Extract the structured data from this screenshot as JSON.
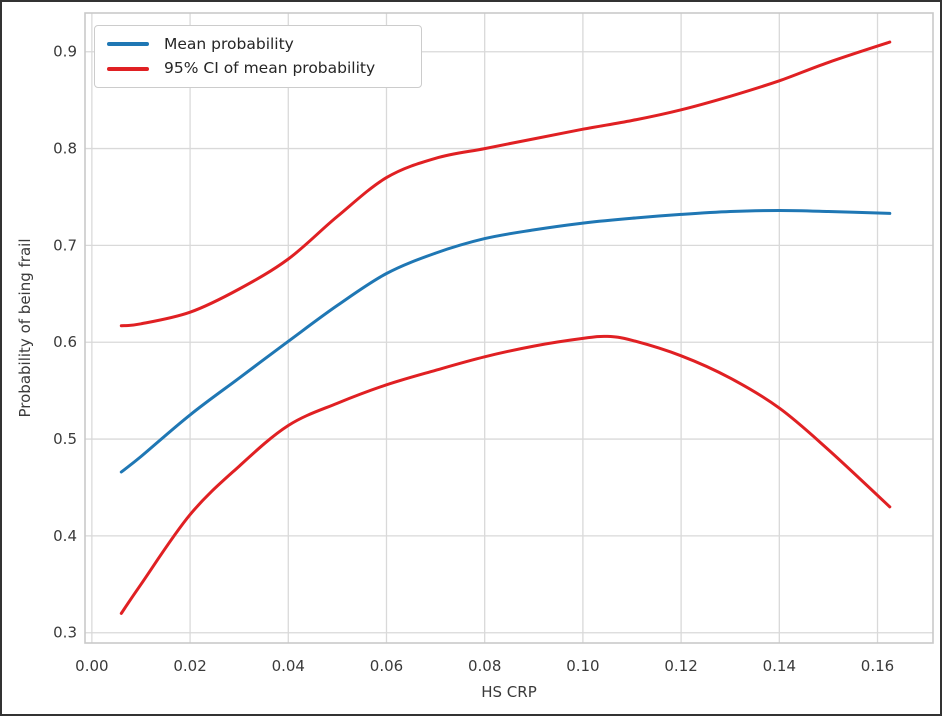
{
  "figure": {
    "background": "#ffffff",
    "frame_border_color": "#333333"
  },
  "legend": {
    "position": "upper-left",
    "items": [
      {
        "label": "Mean probability",
        "color": "#1f77b4"
      },
      {
        "label": "95% CI of mean probability",
        "color": "#e02023"
      }
    ]
  },
  "chart_data": {
    "type": "line",
    "title": "",
    "xlabel": "HS CRP",
    "ylabel": "Probability of being frail",
    "xlim": [
      -0.0014,
      0.1713
    ],
    "ylim": [
      0.2894,
      0.94
    ],
    "grid": true,
    "legend_position": "upper left",
    "colors": {
      "grid": "#d9d9d9",
      "spine": "#c9c9c9",
      "tick_text": "#3a3a3a",
      "label_text": "#3a3a3a"
    },
    "x_ticks": [
      {
        "value": 0.0,
        "label": "0.00"
      },
      {
        "value": 0.02,
        "label": "0.02"
      },
      {
        "value": 0.04,
        "label": "0.04"
      },
      {
        "value": 0.06,
        "label": "0.06"
      },
      {
        "value": 0.08,
        "label": "0.08"
      },
      {
        "value": 0.1,
        "label": "0.10"
      },
      {
        "value": 0.12,
        "label": "0.12"
      },
      {
        "value": 0.14,
        "label": "0.14"
      },
      {
        "value": 0.16,
        "label": "0.16"
      }
    ],
    "y_ticks": [
      {
        "value": 0.3,
        "label": "0.3"
      },
      {
        "value": 0.4,
        "label": "0.4"
      },
      {
        "value": 0.5,
        "label": "0.5"
      },
      {
        "value": 0.6,
        "label": "0.6"
      },
      {
        "value": 0.7,
        "label": "0.7"
      },
      {
        "value": 0.8,
        "label": "0.8"
      },
      {
        "value": 0.9,
        "label": "0.9"
      }
    ],
    "series": [
      {
        "name": "Mean probability",
        "role": "mean",
        "color": "#1f77b4",
        "width": 3,
        "x": [
          0.006,
          0.01,
          0.02,
          0.03,
          0.04,
          0.05,
          0.06,
          0.07,
          0.08,
          0.09,
          0.1,
          0.11,
          0.12,
          0.13,
          0.14,
          0.15,
          0.1625
        ],
        "y": [
          0.466,
          0.482,
          0.525,
          0.563,
          0.601,
          0.638,
          0.671,
          0.692,
          0.707,
          0.716,
          0.723,
          0.728,
          0.732,
          0.735,
          0.736,
          0.735,
          0.733
        ]
      },
      {
        "name": "95% CI of mean probability",
        "role": "ci-upper",
        "color": "#e02023",
        "width": 3,
        "x": [
          0.006,
          0.01,
          0.02,
          0.03,
          0.04,
          0.05,
          0.06,
          0.07,
          0.08,
          0.09,
          0.1,
          0.11,
          0.12,
          0.13,
          0.14,
          0.15,
          0.1625
        ],
        "y": [
          0.617,
          0.619,
          0.631,
          0.655,
          0.686,
          0.73,
          0.77,
          0.79,
          0.8,
          0.81,
          0.82,
          0.829,
          0.84,
          0.854,
          0.87,
          0.889,
          0.91
        ]
      },
      {
        "name": "95% CI of mean probability",
        "role": "ci-lower",
        "color": "#e02023",
        "width": 3,
        "x": [
          0.006,
          0.01,
          0.02,
          0.03,
          0.04,
          0.05,
          0.06,
          0.07,
          0.08,
          0.09,
          0.1,
          0.105,
          0.11,
          0.12,
          0.13,
          0.14,
          0.15,
          0.1625
        ],
        "y": [
          0.32,
          0.35,
          0.422,
          0.472,
          0.514,
          0.537,
          0.556,
          0.571,
          0.585,
          0.596,
          0.604,
          0.606,
          0.602,
          0.586,
          0.563,
          0.532,
          0.489,
          0.43
        ]
      }
    ]
  }
}
